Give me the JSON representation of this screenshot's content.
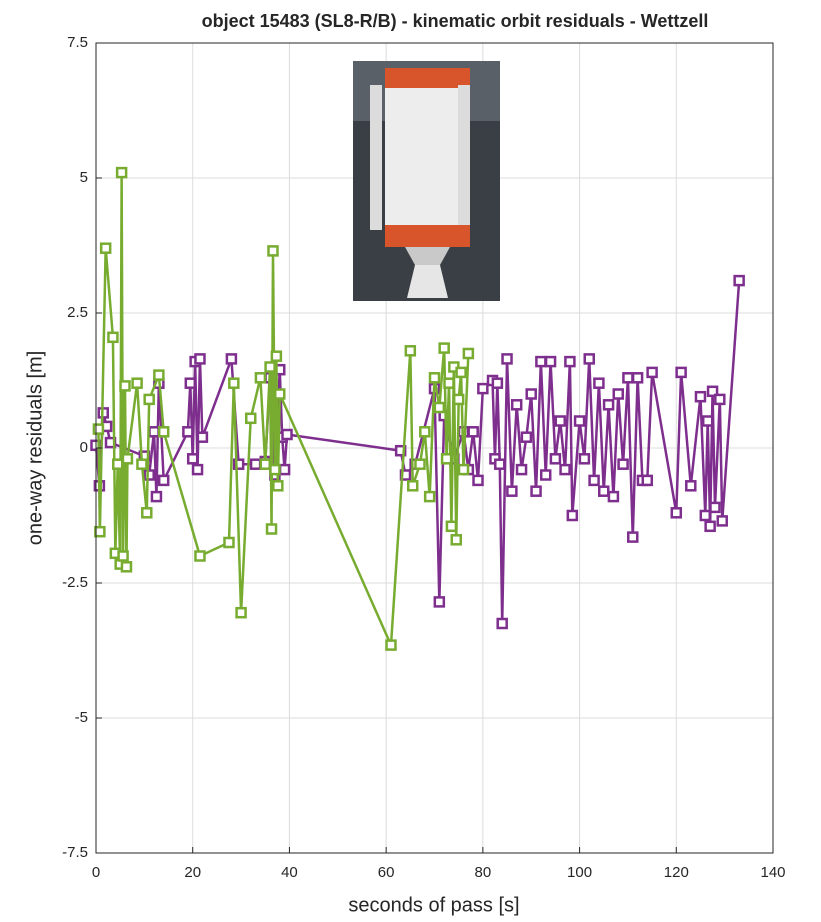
{
  "chart_data": {
    "type": "line",
    "title": "object 15483 (SL8-R/B) - kinematic orbit residuals - Wettzell",
    "xlabel": "seconds of pass [s]",
    "ylabel": "one-way residuals [m]",
    "xlim": [
      0,
      140
    ],
    "xticks": [
      0,
      20,
      40,
      60,
      80,
      100,
      120,
      140
    ],
    "ylim": [
      -7.5,
      7.5
    ],
    "yticks": [
      -7.5,
      -5,
      -2.5,
      0,
      2.5,
      5,
      7.5
    ],
    "grid": true,
    "series": [
      {
        "color": "#7e2f8e",
        "x": [
          0,
          0.7,
          1.5,
          2.2,
          3,
          10,
          11,
          12,
          12.5,
          13,
          14,
          19,
          19.5,
          20,
          20.5,
          21,
          21.5,
          22,
          28,
          29.5,
          33,
          35,
          36,
          37,
          38,
          38.5,
          39,
          39.5,
          63,
          64,
          66,
          70,
          71,
          72,
          74,
          76,
          77,
          78,
          79,
          80,
          82,
          82.5,
          83,
          83.5,
          84,
          85,
          86,
          87,
          88,
          89,
          90,
          91,
          92,
          93,
          94,
          95,
          96,
          97,
          98,
          98.5,
          100,
          101,
          102,
          103,
          104,
          105,
          106,
          107,
          108,
          109,
          110,
          111,
          112,
          113,
          114,
          115,
          120,
          121,
          123,
          125,
          126,
          126.5,
          127,
          127.5,
          128,
          129,
          129.5,
          133
        ],
        "values": [
          0.05,
          -0.7,
          0.65,
          0.4,
          0.1,
          -0.15,
          -0.5,
          0.3,
          -0.9,
          1.2,
          -0.6,
          0.3,
          1.2,
          -0.2,
          1.6,
          -0.4,
          1.65,
          0.2,
          1.65,
          -0.3,
          -0.3,
          -0.25,
          1.3,
          -0.5,
          1.45,
          0.2,
          -0.4,
          0.25,
          -0.05,
          -0.5,
          -0.3,
          1.1,
          -2.85,
          0.6,
          -0.2,
          0.3,
          -0.4,
          0.3,
          -0.6,
          1.1,
          1.25,
          -0.2,
          1.2,
          -0.3,
          -3.25,
          1.65,
          -0.8,
          0.8,
          -0.4,
          0.2,
          1.0,
          -0.8,
          1.6,
          -0.5,
          1.6,
          -0.2,
          0.5,
          -0.4,
          1.6,
          -1.25,
          0.5,
          -0.2,
          1.65,
          -0.6,
          1.2,
          -0.8,
          0.8,
          -0.9,
          1.0,
          -0.3,
          1.3,
          -1.65,
          1.3,
          -0.6,
          -0.6,
          1.4,
          -1.2,
          1.4,
          -0.7,
          0.95,
          -1.25,
          0.5,
          -1.45,
          1.05,
          -1.1,
          0.9,
          -1.35,
          3.1
        ]
      },
      {
        "color": "#77ac30",
        "x": [
          0.5,
          0.8,
          2,
          3.5,
          4,
          4.5,
          5,
          5.3,
          5.6,
          6,
          6.3,
          6.5,
          8.5,
          9.5,
          10.5,
          11,
          13,
          14,
          21.5,
          27.5,
          28.5,
          30,
          32,
          34,
          35,
          36,
          36.3,
          36.6,
          37,
          37.3,
          37.6,
          38,
          61,
          65,
          65.5,
          67,
          68,
          69,
          70,
          71,
          72,
          72.5,
          73,
          73.5,
          74,
          74.5,
          75,
          75.5,
          76,
          77
        ],
        "values": [
          0.35,
          -1.55,
          3.7,
          2.05,
          -1.95,
          -0.3,
          -2.15,
          5.1,
          -2.0,
          1.15,
          -2.2,
          -0.2,
          1.2,
          -0.3,
          -1.2,
          0.9,
          1.35,
          0.3,
          -2.0,
          -1.75,
          1.2,
          -3.05,
          0.55,
          1.3,
          -0.3,
          1.5,
          -1.5,
          3.65,
          -0.4,
          1.7,
          -0.7,
          1.0,
          -3.65,
          1.8,
          -0.7,
          -0.3,
          0.3,
          -0.9,
          1.3,
          0.75,
          1.85,
          -0.2,
          1.2,
          -1.45,
          1.5,
          -1.7,
          0.9,
          1.4,
          -0.4,
          1.75
        ]
      }
    ]
  }
}
